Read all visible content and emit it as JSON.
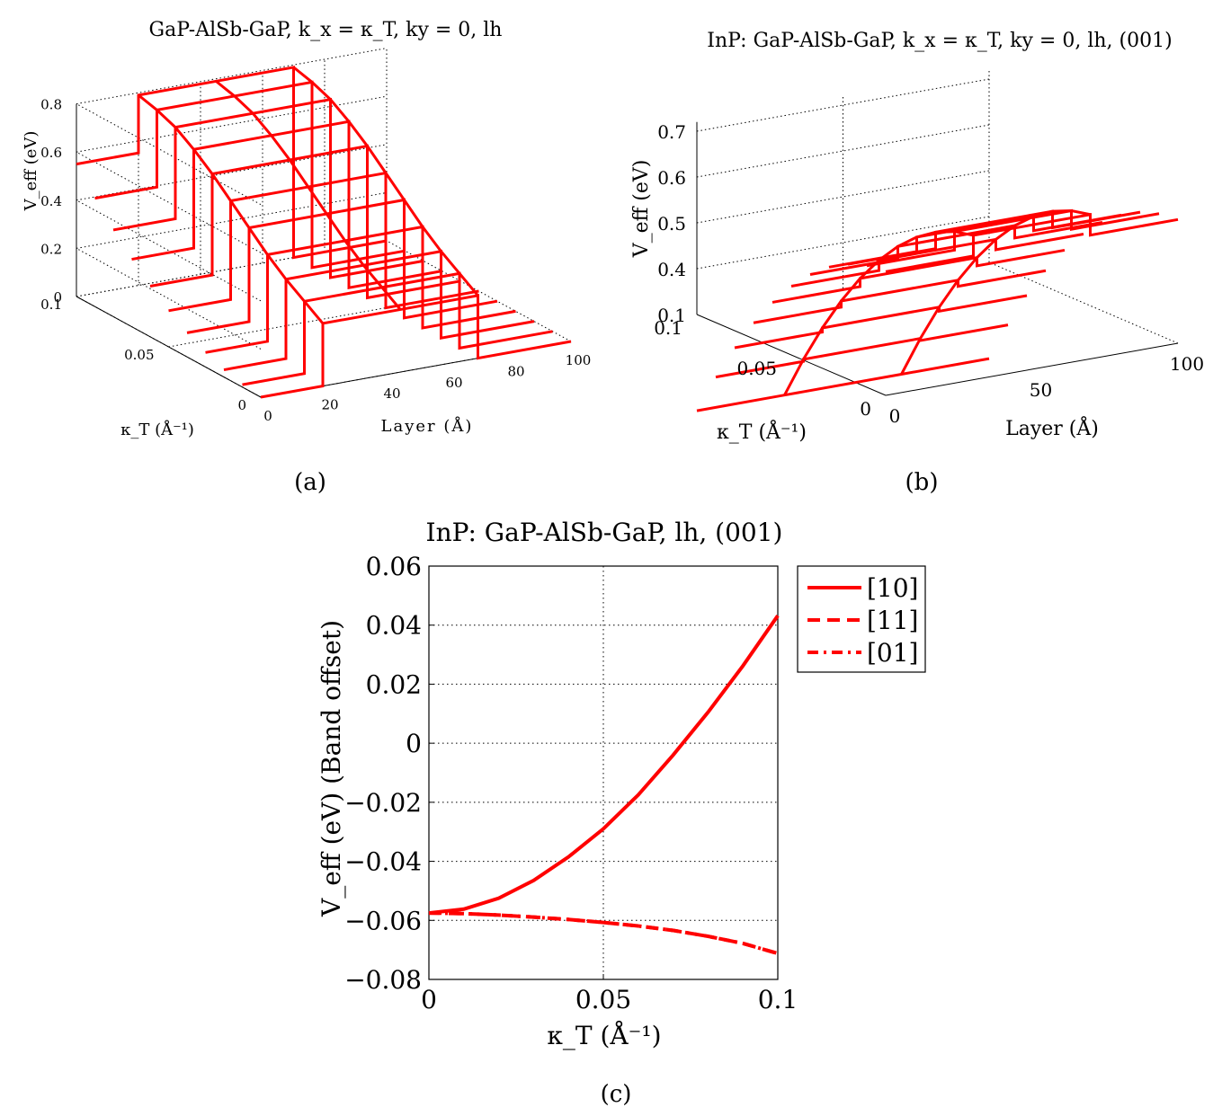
{
  "chart_data": [
    {
      "panel": "(a)",
      "type": "surface3d-mesh",
      "title": "GaP-AlSb-GaP, k_x = κ_T, ky = 0, lh",
      "xlabel": "Layer (Å)",
      "ylabel": "κ_T (Å⁻¹)",
      "zlabel": "V_eff (eV)",
      "x_ticks": [
        "0",
        "20",
        "40",
        "60",
        "80",
        "100"
      ],
      "y_ticks": [
        "0",
        "0.05",
        "0.1"
      ],
      "z_ticks": [
        "0",
        "0.2",
        "0.4",
        "0.6",
        "0.8"
      ],
      "xlim": [
        0,
        100
      ],
      "ylim": [
        0,
        0.1
      ],
      "zlim": [
        0,
        0.8
      ],
      "well_layers": [
        20,
        70
      ],
      "kappa_samples": [
        0,
        0.01,
        0.02,
        0.03,
        0.04,
        0.05,
        0.06,
        0.07,
        0.08,
        0.09,
        0.1
      ],
      "barrier_eV_at_kappa": [
        0.0,
        0.01,
        0.03,
        0.06,
        0.1,
        0.15,
        0.21,
        0.28,
        0.36,
        0.45,
        0.55
      ],
      "well_eV_at_kappa": [
        0.0,
        0.0,
        0.0,
        0.0,
        0.0,
        0.0,
        0.0,
        0.0,
        0.0,
        0.0,
        0.0
      ],
      "edge_eV_at_kappa": [
        0.26,
        0.31,
        0.36,
        0.42,
        0.49,
        0.56,
        0.63,
        0.69,
        0.74,
        0.77,
        0.79
      ],
      "color": "#ff0000",
      "caption": "(a)"
    },
    {
      "panel": "(b)",
      "type": "surface3d-mesh",
      "title": "InP: GaP-AlSb-GaP, k_x = κ_T, ky = 0, lh, (001)",
      "xlabel": "Layer (Å)",
      "ylabel": "κ_T (Å⁻¹)",
      "zlabel": "V_eff (eV)",
      "x_ticks": [
        "0",
        "50",
        "100"
      ],
      "y_ticks": [
        "0",
        "0.05",
        "0.1"
      ],
      "z_ticks": [
        "0.4",
        "0.5",
        "0.6",
        "0.7"
      ],
      "xlim": [
        0,
        100
      ],
      "ylim": [
        0,
        0.1
      ],
      "zlim": [
        0.3,
        0.7
      ],
      "well_layers": [
        30,
        70
      ],
      "caption": "(b)",
      "color": "#ff0000"
    },
    {
      "panel": "(c)",
      "type": "line",
      "title": "InP: GaP-AlSb-GaP, lh, (001)",
      "xlabel": "κ_T (Å⁻¹)",
      "ylabel": "V_eff (eV) (Band offset)",
      "xlim": [
        0,
        0.1
      ],
      "ylim": [
        -0.08,
        0.06
      ],
      "x_ticks": [
        "0",
        "0.05",
        "0.1"
      ],
      "y_ticks": [
        "0.06",
        "0.04",
        "0.02",
        "0",
        "−0.02",
        "−0.04",
        "−0.06",
        "−0.08"
      ],
      "grid": true,
      "legend_position": "outside-right",
      "x": [
        0,
        0.01,
        0.02,
        0.03,
        0.04,
        0.05,
        0.06,
        0.07,
        0.08,
        0.09,
        0.1
      ],
      "series": [
        {
          "name": "[10]",
          "style": "solid",
          "color": "#ff0000",
          "values": [
            -0.0575,
            -0.0562,
            -0.0525,
            -0.0465,
            -0.0385,
            -0.029,
            -0.0175,
            -0.004,
            0.0105,
            0.0262,
            0.0432
          ]
        },
        {
          "name": "[11]",
          "style": "dashed",
          "color": "#ff0000",
          "values": [
            -0.0575,
            -0.0577,
            -0.0582,
            -0.0589,
            -0.0597,
            -0.0607,
            -0.0619,
            -0.0634,
            -0.0654,
            -0.0678,
            -0.0712
          ]
        },
        {
          "name": "[01]",
          "style": "dashdot",
          "color": "#ff0000",
          "values": [
            -0.0575,
            -0.0577,
            -0.0582,
            -0.0589,
            -0.0597,
            -0.0607,
            -0.0619,
            -0.0634,
            -0.0654,
            -0.0678,
            -0.0712
          ]
        }
      ],
      "caption": "(c)"
    }
  ]
}
